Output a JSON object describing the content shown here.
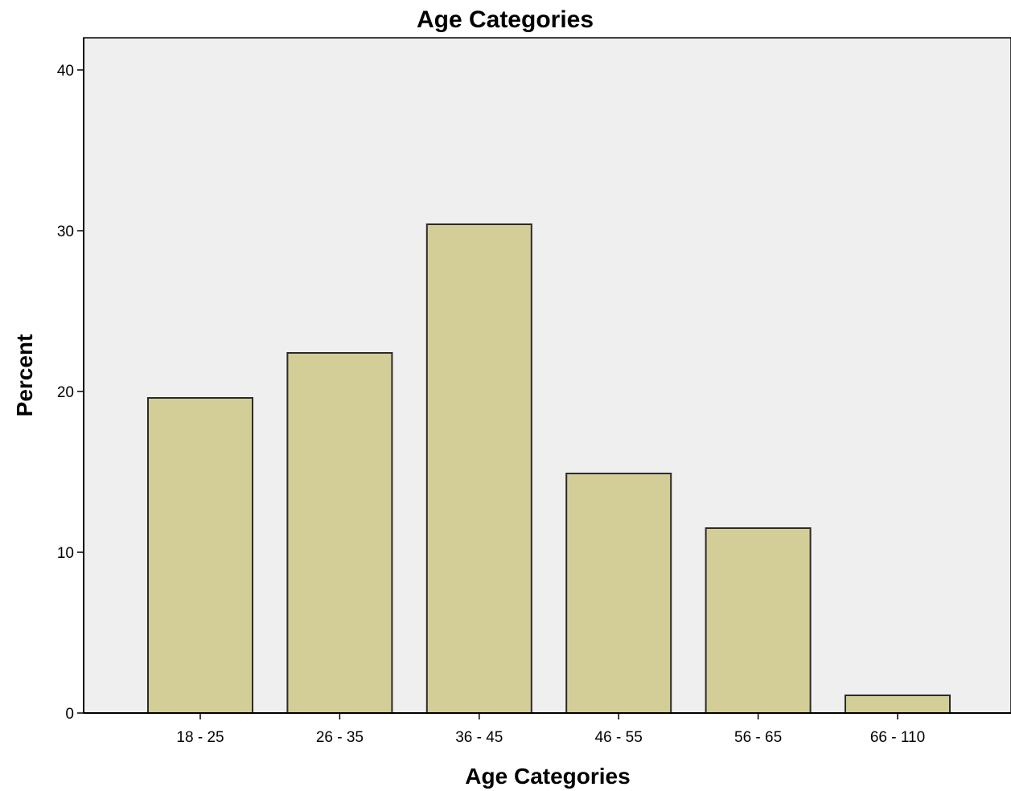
{
  "chart_data": {
    "type": "bar",
    "title": "Age Categories",
    "xlabel": "Age Categories",
    "ylabel": "Percent",
    "categories": [
      "18 - 25",
      "26 - 35",
      "36 - 45",
      "46 - 55",
      "56 - 65",
      "66 - 110"
    ],
    "values": [
      19.6,
      22.4,
      30.4,
      14.9,
      11.5,
      1.1
    ],
    "ylim": [
      0,
      42
    ],
    "yticks": [
      0,
      10,
      20,
      30,
      40
    ],
    "grid": false,
    "colors": {
      "plot_background": "#EFEFEF",
      "bar_fill": "#D3CE98",
      "bar_stroke": "#2B2B2B",
      "axis": "#000000"
    }
  }
}
